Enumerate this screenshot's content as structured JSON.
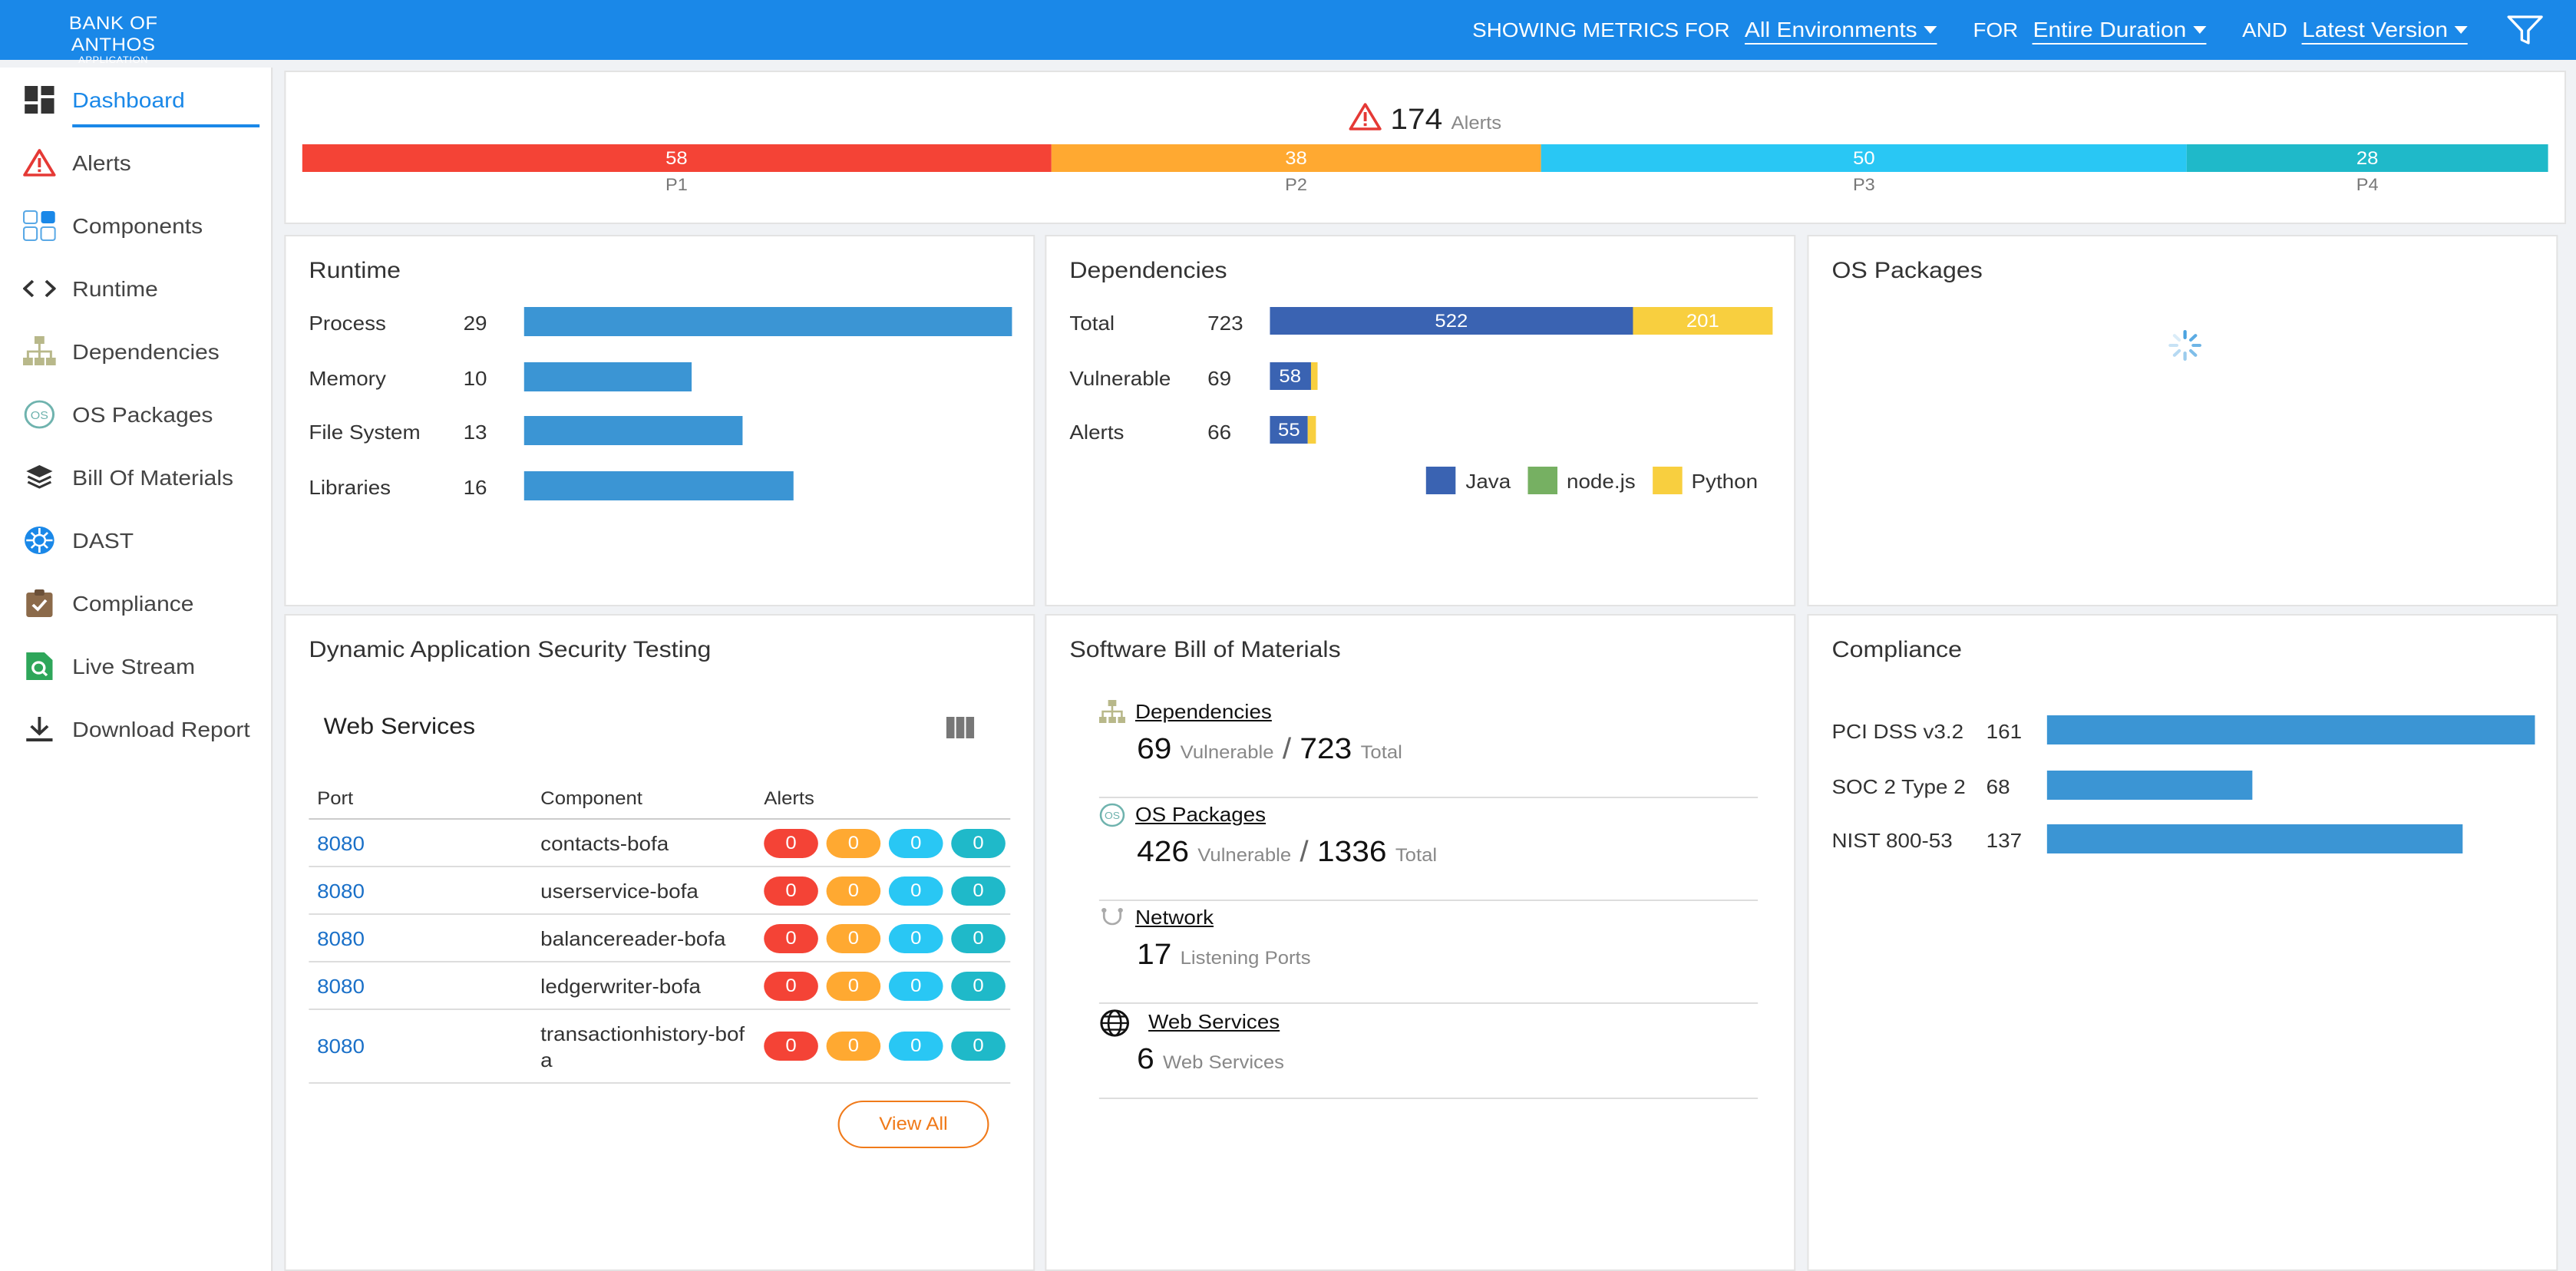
{
  "brand": {
    "title": "BANK OF ANTHOS",
    "subtitle": "APPLICATION"
  },
  "topbar": {
    "showing_label": "SHOWING METRICS FOR",
    "env": "All Environments",
    "for_label": "FOR",
    "duration": "Entire Duration",
    "and_label": "AND",
    "version": "Latest Version"
  },
  "sidebar": {
    "items": [
      {
        "label": "Dashboard",
        "icon": "dashboard-icon"
      },
      {
        "label": "Alerts",
        "icon": "alert-triangle-icon"
      },
      {
        "label": "Components",
        "icon": "components-icon"
      },
      {
        "label": "Runtime",
        "icon": "code-icon"
      },
      {
        "label": "Dependencies",
        "icon": "hierarchy-icon"
      },
      {
        "label": "OS Packages",
        "icon": "os-icon"
      },
      {
        "label": "Bill Of Materials",
        "icon": "layers-icon"
      },
      {
        "label": "DAST",
        "icon": "dast-icon"
      },
      {
        "label": "Compliance",
        "icon": "clipboard-check-icon"
      },
      {
        "label": "Live Stream",
        "icon": "live-stream-icon"
      },
      {
        "label": "Download Report",
        "icon": "download-icon"
      }
    ]
  },
  "alerts_summary": {
    "total": "174",
    "label": "Alerts",
    "segments": [
      {
        "value": "58",
        "priority": "P1",
        "color": "#f44336"
      },
      {
        "value": "38",
        "priority": "P2",
        "color": "#ffa931"
      },
      {
        "value": "50",
        "priority": "P3",
        "color": "#29c7f4"
      },
      {
        "value": "28",
        "priority": "P4",
        "color": "#1fb9c9"
      }
    ]
  },
  "runtime": {
    "title": "Runtime",
    "max": 29,
    "rows": [
      {
        "label": "Process",
        "value": "29"
      },
      {
        "label": "Memory",
        "value": "10"
      },
      {
        "label": "File System",
        "value": "13"
      },
      {
        "label": "Libraries",
        "value": "16"
      }
    ]
  },
  "dependencies": {
    "title": "Dependencies",
    "max": 723,
    "rows": [
      {
        "label": "Total",
        "value": "723",
        "java": "522",
        "nodejs": "",
        "python": "201",
        "python_value": 201
      },
      {
        "label": "Vulnerable",
        "value": "69",
        "java": "58",
        "nodejs": "",
        "python": "",
        "python_value": 11
      },
      {
        "label": "Alerts",
        "value": "66",
        "java": "55",
        "nodejs": "",
        "python": "",
        "python_value": 11
      }
    ],
    "legend": [
      {
        "label": "Java",
        "color": "#3a63b2"
      },
      {
        "label": "node.js",
        "color": "#76b062"
      },
      {
        "label": "Python",
        "color": "#f8cf3f"
      }
    ]
  },
  "os_packages": {
    "title": "OS Packages"
  },
  "dast": {
    "title": "Dynamic Application Security Testing",
    "subtitle": "Web Services",
    "columns": [
      "Port",
      "Component",
      "Alerts"
    ],
    "rows": [
      {
        "port": "8080",
        "component": "contacts-bofa",
        "alerts": [
          "0",
          "0",
          "0",
          "0"
        ]
      },
      {
        "port": "8080",
        "component": "userservice-bofa",
        "alerts": [
          "0",
          "0",
          "0",
          "0"
        ]
      },
      {
        "port": "8080",
        "component": "balancereader-bofa",
        "alerts": [
          "0",
          "0",
          "0",
          "0"
        ]
      },
      {
        "port": "8080",
        "component": "ledgerwriter-bofa",
        "alerts": [
          "0",
          "0",
          "0",
          "0"
        ]
      },
      {
        "port": "8080",
        "component": "transactionhistory-bofa",
        "alerts": [
          "0",
          "0",
          "0",
          "0"
        ]
      }
    ],
    "view_all": "View All"
  },
  "sbom": {
    "title": "Software Bill of Materials",
    "items": [
      {
        "link": "Dependencies",
        "count": "69",
        "count_unit": "Vulnerable",
        "sep": "/",
        "total": "723",
        "total_unit": "Total"
      },
      {
        "link": "OS Packages",
        "count": "426",
        "count_unit": "Vulnerable",
        "sep": "/",
        "total": "1336",
        "total_unit": "Total"
      },
      {
        "link": "Network",
        "count": "17",
        "count_unit": "Listening Ports"
      },
      {
        "link": "Web Services",
        "count": "6",
        "count_unit": "Web Services"
      }
    ]
  },
  "compliance": {
    "title": "Compliance",
    "max": 161,
    "rows": [
      {
        "label": "PCI DSS v3.2",
        "value": "161"
      },
      {
        "label": "SOC 2 Type 2",
        "value": "68"
      },
      {
        "label": "NIST 800-53",
        "value": "137"
      }
    ]
  }
}
